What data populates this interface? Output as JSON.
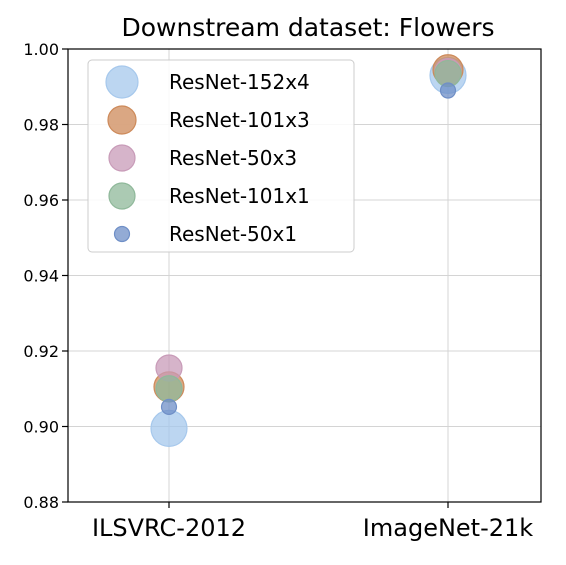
{
  "chart_data": {
    "type": "scatter",
    "title": "Downstream dataset: Flowers",
    "xlabel": "",
    "ylabel": "",
    "categories": [
      "ILSVRC-2012",
      "ImageNet-21k"
    ],
    "ylim": [
      0.88,
      1.0
    ],
    "yticks": [
      "0.88",
      "0.90",
      "0.92",
      "0.94",
      "0.96",
      "0.98",
      "1.00"
    ],
    "grid": true,
    "legend_position": "top-left",
    "series": [
      {
        "name": "ResNet-152x4",
        "color": "#a6c8ec",
        "values": [
          0.8995,
          0.993
        ]
      },
      {
        "name": "ResNet-101x3",
        "color": "#cd8a5a",
        "values": [
          0.9105,
          0.9945
        ]
      },
      {
        "name": "ResNet-50x3",
        "color": "#c89bb8",
        "values": [
          0.9155,
          0.994
        ]
      },
      {
        "name": "ResNet-101x1",
        "color": "#8fb89a",
        "values": [
          0.91,
          0.9935
        ]
      },
      {
        "name": "ResNet-50x1",
        "color": "#6f8fc7",
        "values": [
          0.9052,
          0.989
        ]
      }
    ]
  }
}
